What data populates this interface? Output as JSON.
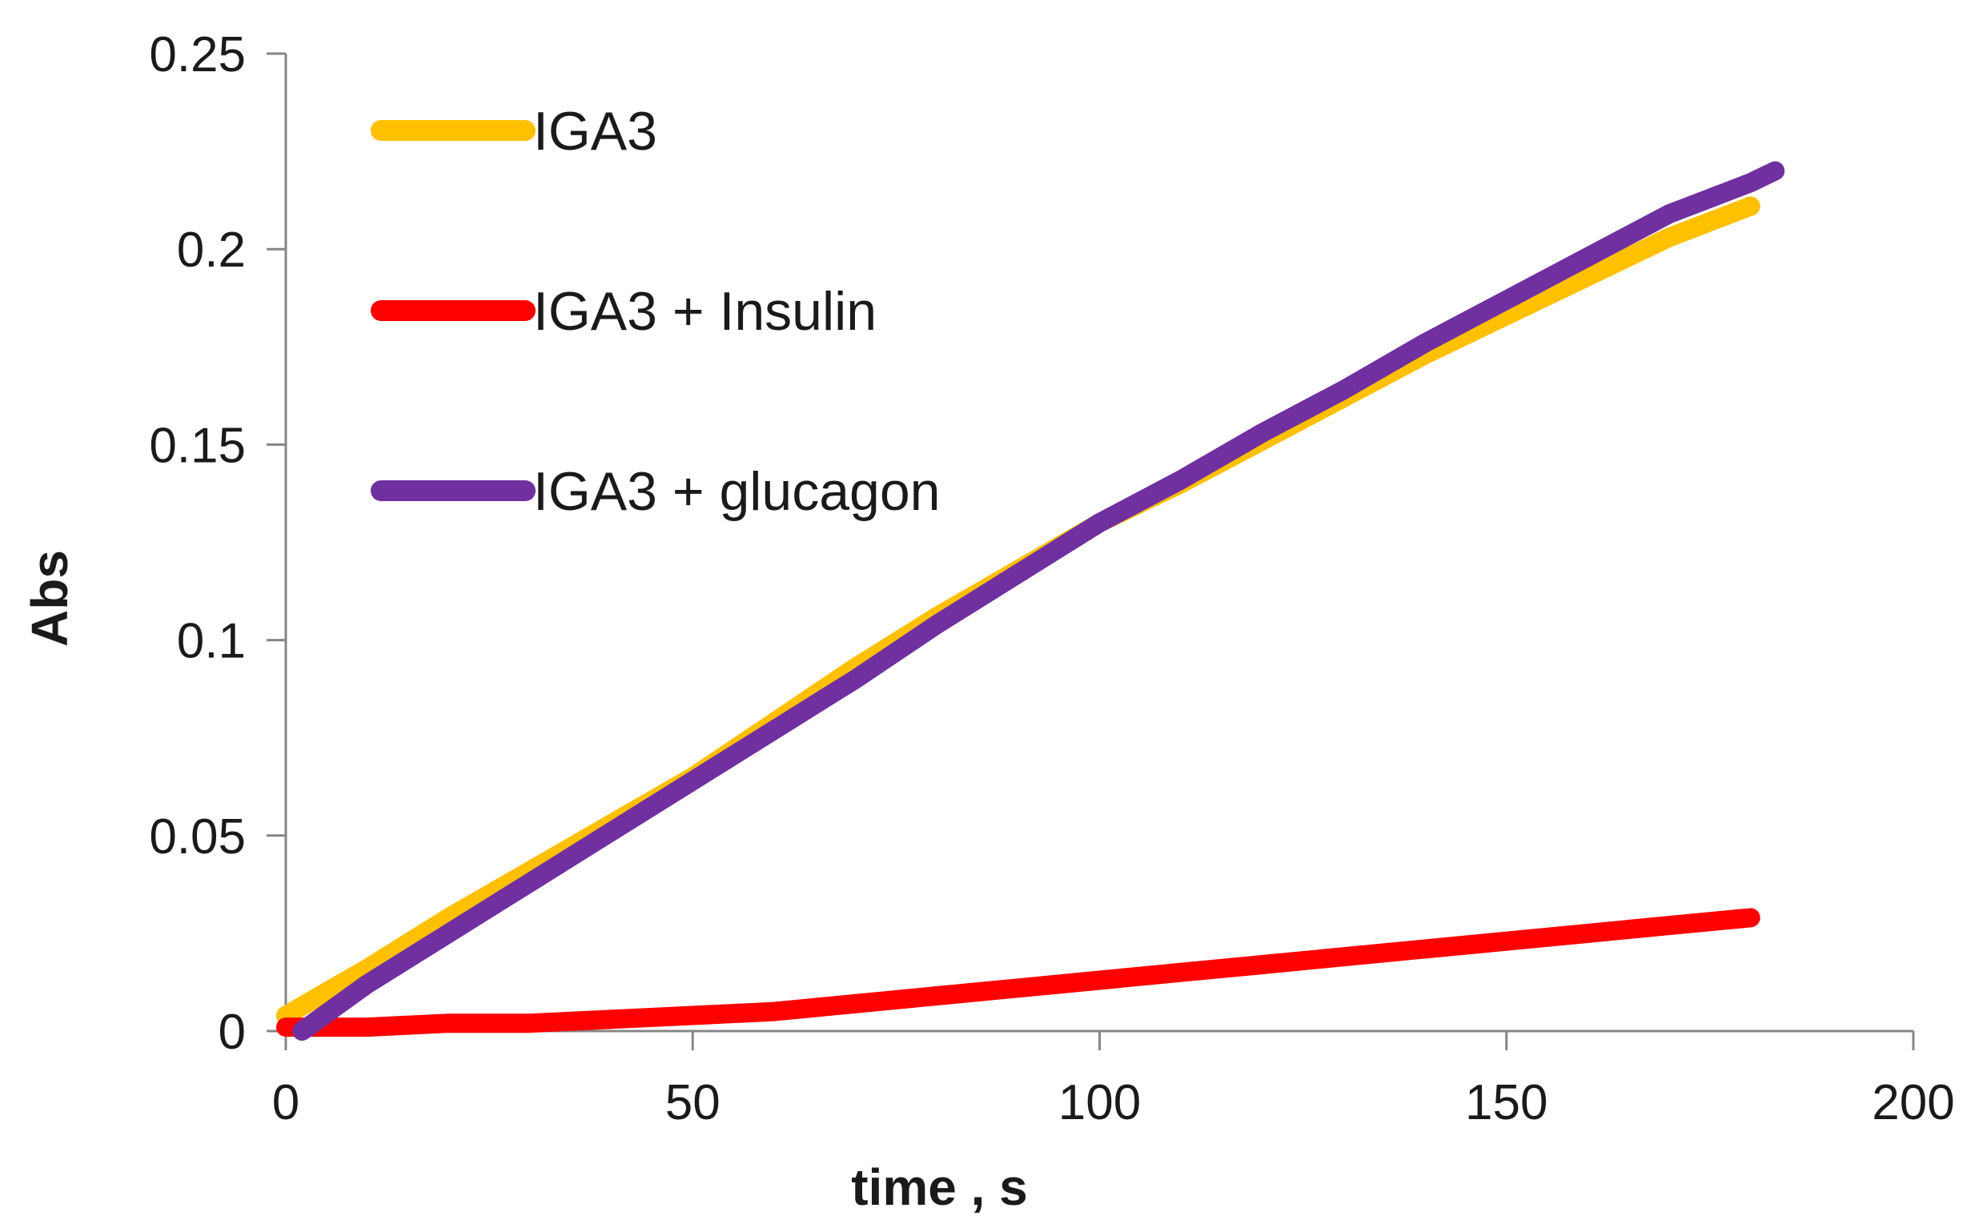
{
  "chart_data": {
    "type": "line",
    "title": "",
    "xlabel": "time , s",
    "ylabel": "Abs",
    "xlim": [
      0,
      200
    ],
    "ylim": [
      0,
      0.25
    ],
    "xticks": [
      0,
      50,
      100,
      150,
      200
    ],
    "xtick_labels": [
      "0",
      "50",
      "100",
      "150",
      "200"
    ],
    "yticks": [
      0,
      0.05,
      0.1,
      0.15,
      0.2,
      0.25
    ],
    "ytick_labels": [
      "0",
      "0.05",
      "0.1",
      "0.15",
      "0.2",
      "0.25"
    ],
    "grid": false,
    "legend_position": "top-left",
    "series": [
      {
        "name": "IGA3",
        "color": "#FFC000",
        "x": [
          0,
          10,
          20,
          30,
          40,
          50,
          60,
          70,
          80,
          90,
          100,
          110,
          120,
          130,
          140,
          150,
          160,
          170,
          180
        ],
        "y": [
          0.004,
          0.016,
          0.029,
          0.041,
          0.053,
          0.065,
          0.079,
          0.093,
          0.106,
          0.118,
          0.13,
          0.14,
          0.151,
          0.162,
          0.173,
          0.183,
          0.193,
          0.203,
          0.211
        ]
      },
      {
        "name": "IGA3 + Insulin",
        "color": "#FF0000",
        "x": [
          0,
          10,
          20,
          30,
          40,
          50,
          60,
          70,
          80,
          90,
          100,
          110,
          120,
          130,
          140,
          150,
          160,
          170,
          180
        ],
        "y": [
          0.001,
          0.001,
          0.002,
          0.002,
          0.003,
          0.004,
          0.005,
          0.007,
          0.009,
          0.011,
          0.013,
          0.015,
          0.017,
          0.019,
          0.021,
          0.023,
          0.025,
          0.027,
          0.029
        ]
      },
      {
        "name": "IGA3 + glucagon",
        "color": "#7030A0",
        "x": [
          2,
          10,
          20,
          30,
          40,
          50,
          60,
          70,
          80,
          90,
          100,
          110,
          120,
          130,
          140,
          150,
          160,
          170,
          180,
          183
        ],
        "y": [
          0.0,
          0.012,
          0.025,
          0.038,
          0.051,
          0.064,
          0.077,
          0.09,
          0.104,
          0.117,
          0.13,
          0.141,
          0.153,
          0.164,
          0.176,
          0.187,
          0.198,
          0.209,
          0.217,
          0.22
        ]
      }
    ]
  }
}
